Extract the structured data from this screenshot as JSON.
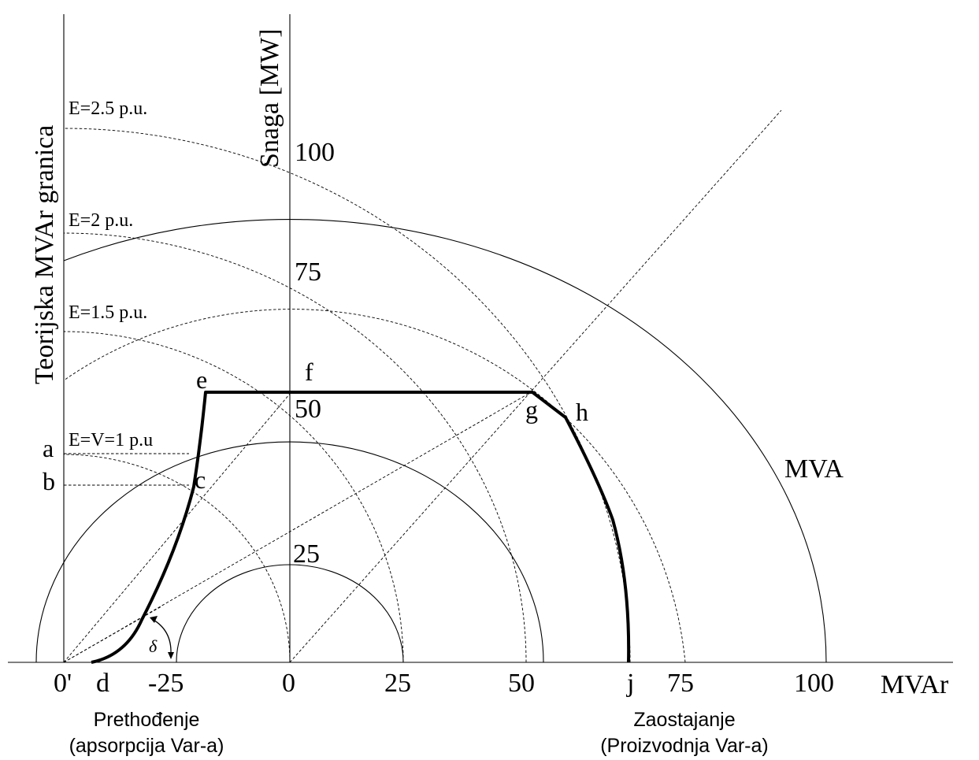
{
  "diagram": {
    "y_axis_title": "Snaga [MW]",
    "left_axis_title": "Teorijska MVAr granica",
    "x_axis_title": "MVAr",
    "x_ticks": [
      "0'",
      "d",
      "-25",
      "0",
      "25",
      "50",
      "j",
      "75",
      "100"
    ],
    "y_ticks": [
      "25",
      "50",
      "75",
      "100"
    ],
    "e_labels": [
      "E=2.5 p.u.",
      "E=2 p.u.",
      "E=1.5 p.u.",
      "E=V=1 p.u"
    ],
    "points": [
      "a",
      "b",
      "c",
      "e",
      "f",
      "g",
      "h"
    ],
    "mva_label": "MVA",
    "delta_symbol": "δ",
    "left_caption": {
      "line1": "Prethođenje",
      "line2": "(apsorpcija Var-a)"
    },
    "right_caption": {
      "line1": "Zaostajanje",
      "line2": "(Proizvodnja Var-a)"
    }
  }
}
